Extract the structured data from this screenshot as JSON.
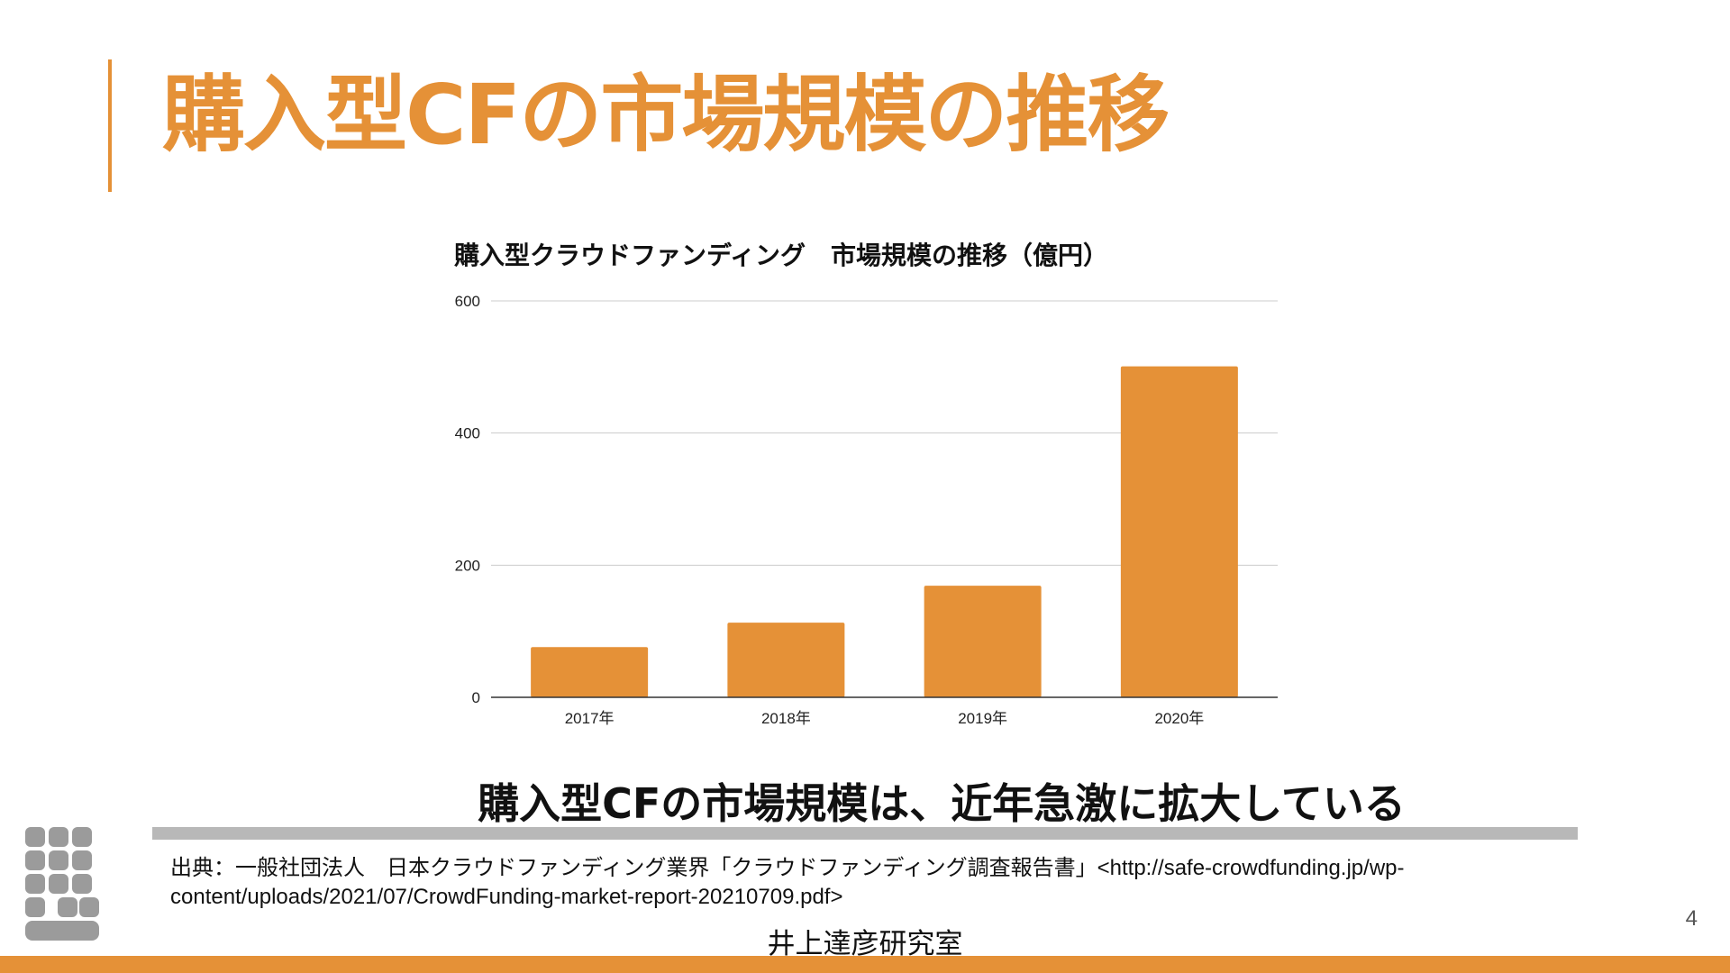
{
  "slide": {
    "title": "購入型CFの市場規模の推移",
    "conclusion": "購入型CFの市場規模は、近年急激に拡大している",
    "citation": "出典：一般社団法人　日本クラウドファンディング業界「クラウドファンディング調査報告書」<http://safe-crowdfunding.jp/wp-content/uploads/2021/07/CrowdFunding-market-report-20210709.pdf>",
    "footer_label": "井上達彦研究室",
    "page_number": "4",
    "accent_color": "#e59137",
    "logo_icon": "grid-logo-icon"
  },
  "chart_data": {
    "type": "bar",
    "title": "購入型クラウドファンディング　市場規模の推移（億円）",
    "categories": [
      "2017年",
      "2018年",
      "2019年",
      "2020年"
    ],
    "values": [
      76,
      113,
      169,
      501
    ],
    "ylim": [
      0,
      600
    ],
    "yticks": [
      "0",
      "200",
      "400",
      "600"
    ],
    "grid": true,
    "legend": "none",
    "bar_color": "#e59137"
  }
}
